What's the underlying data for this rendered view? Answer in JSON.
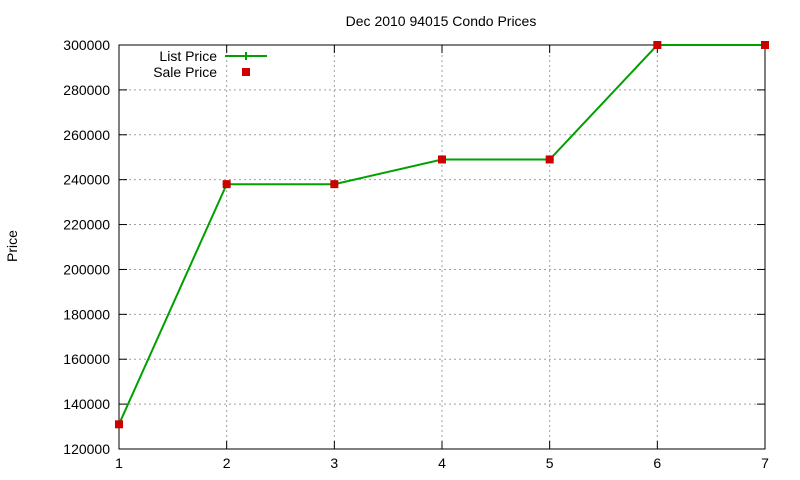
{
  "chart_data": {
    "type": "line",
    "title": "Dec 2010 94015 Condo Prices",
    "xlabel": "",
    "ylabel": "Price",
    "x": [
      1,
      2,
      3,
      4,
      5,
      6,
      7
    ],
    "xlim": [
      1,
      7
    ],
    "ylim": [
      120000,
      300000
    ],
    "xticks": [
      1,
      2,
      3,
      4,
      5,
      6,
      7
    ],
    "yticks": [
      120000,
      140000,
      160000,
      180000,
      200000,
      220000,
      240000,
      260000,
      280000,
      300000
    ],
    "grid": true,
    "legend_position": "top-left",
    "series": [
      {
        "name": "List Price",
        "style": "line",
        "color": "#00a000",
        "values": [
          131000,
          238000,
          238000,
          249000,
          249000,
          300000,
          300000
        ]
      },
      {
        "name": "Sale Price",
        "style": "points",
        "color": "#cc0000",
        "values": [
          131000,
          238000,
          238000,
          249000,
          249000,
          300000,
          300000
        ]
      }
    ]
  }
}
